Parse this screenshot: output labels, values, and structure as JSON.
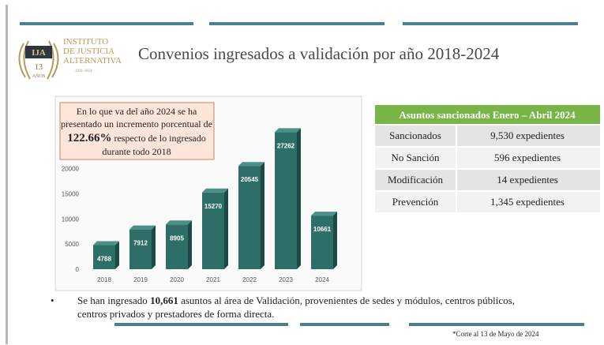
{
  "title": "Convenios ingresados a validación por año 2018-2024",
  "logo": {
    "lines": [
      "INSTITUTO",
      "DE JUSTICIA",
      "ALTERNATIVA"
    ],
    "badge": "IJA",
    "years": "13",
    "years_word": "AÑOS",
    "period": "2011-2024"
  },
  "chart_data": {
    "type": "bar",
    "categories": [
      "2018",
      "2019",
      "2020",
      "2021",
      "2022",
      "2023",
      "2024"
    ],
    "values": [
      4788,
      7912,
      8905,
      15270,
      20545,
      27262,
      10661
    ],
    "color": "#2d6e66",
    "ylim": [
      0,
      30000
    ],
    "yticks": [
      0,
      5000,
      10000,
      15000,
      20000
    ],
    "annotation": {
      "line1": "En lo que va del año 2024 se ha",
      "line2": "presentado un incremento porcentual de",
      "line3_bold": "122.66%",
      "line3_rest": " respecto de lo ingresado",
      "line4": "durante todo 2018"
    }
  },
  "table": {
    "header": "Asuntos sancionados Enero – Abril 2024",
    "rows": [
      [
        "Sancionados",
        "9,530 expedientes"
      ],
      [
        "No Sanción",
        "596 expedientes"
      ],
      [
        "Modificación",
        "14 expedientes"
      ],
      [
        "Prevención",
        "1,345 expedientes"
      ]
    ]
  },
  "bullet": {
    "part1": "Se han ingresado ",
    "bold": "10,661",
    "part2": " asuntos al área de Validación, provenientes de sedes y módulos, centros públicos,",
    "line2": "centros privados y prestadores de forma directa."
  },
  "footnote": "*Corte al 13 de Mayo de 2024"
}
